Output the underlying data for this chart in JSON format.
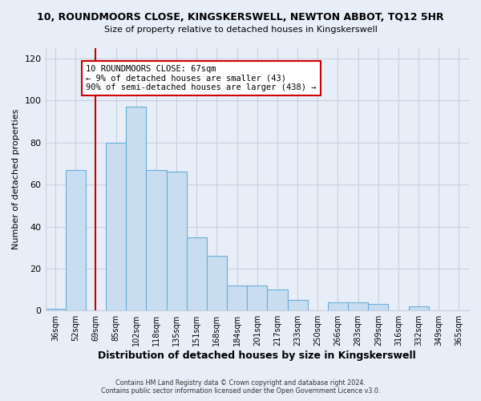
{
  "title": "10, ROUNDMOORS CLOSE, KINGSKERSWELL, NEWTON ABBOT, TQ12 5HR",
  "subtitle": "Size of property relative to detached houses in Kingskerswell",
  "xlabel": "Distribution of detached houses by size in Kingskerswell",
  "ylabel": "Number of detached properties",
  "footer_line1": "Contains HM Land Registry data © Crown copyright and database right 2024.",
  "footer_line2": "Contains public sector information licensed under the Open Government Licence v3.0.",
  "bar_labels": [
    "36sqm",
    "52sqm",
    "69sqm",
    "85sqm",
    "102sqm",
    "118sqm",
    "135sqm",
    "151sqm",
    "168sqm",
    "184sqm",
    "201sqm",
    "217sqm",
    "233sqm",
    "250sqm",
    "266sqm",
    "283sqm",
    "299sqm",
    "316sqm",
    "332sqm",
    "349sqm",
    "365sqm"
  ],
  "bar_values": [
    1,
    67,
    0,
    80,
    97,
    67,
    66,
    35,
    26,
    12,
    12,
    10,
    5,
    0,
    4,
    4,
    3,
    0,
    2,
    0,
    0
  ],
  "bar_color": "#c8ddf0",
  "bar_edge_color": "#6aaed6",
  "ylim": [
    0,
    125
  ],
  "yticks": [
    0,
    20,
    40,
    60,
    80,
    100,
    120
  ],
  "vline_x_index": 2,
  "vline_color": "#cc0000",
  "annotation_title": "10 ROUNDMOORS CLOSE: 67sqm",
  "annotation_line1": "← 9% of detached houses are smaller (43)",
  "annotation_line2": "90% of semi-detached houses are larger (438) →",
  "annotation_box_color": "#ffffff",
  "annotation_box_edge": "#cc0000",
  "background_color": "#e8eef8",
  "grid_color": "#c8d0dc"
}
